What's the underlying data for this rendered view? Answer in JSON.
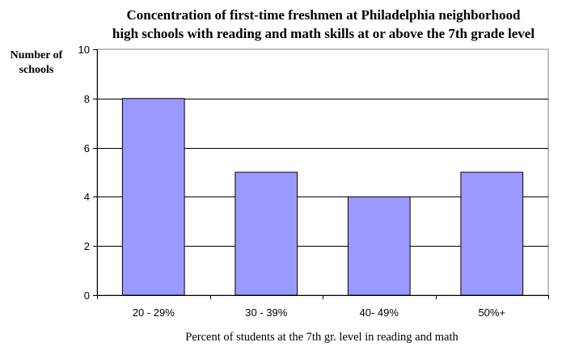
{
  "chart_data": {
    "type": "bar",
    "title_lines": [
      "Concentration of first-time freshmen at Philadelphia neighborhood",
      "high schools with reading and math skills at or above the 7th grade level"
    ],
    "ylabel_lines": [
      "Number of",
      "schools"
    ],
    "xlabel": "Percent of students at the 7th gr. level in reading and math",
    "categories": [
      "20 - 29%",
      "30 - 39%",
      "40- 49%",
      "50%+"
    ],
    "values": [
      8,
      5,
      4,
      5
    ],
    "ylim": [
      0,
      10
    ],
    "yticks": [
      0,
      2,
      4,
      6,
      8,
      10
    ],
    "grid": true,
    "colors": {
      "bar": "#9999ff",
      "bar_stroke": "#000000",
      "grid": "#000000",
      "axis": "#808080"
    }
  }
}
